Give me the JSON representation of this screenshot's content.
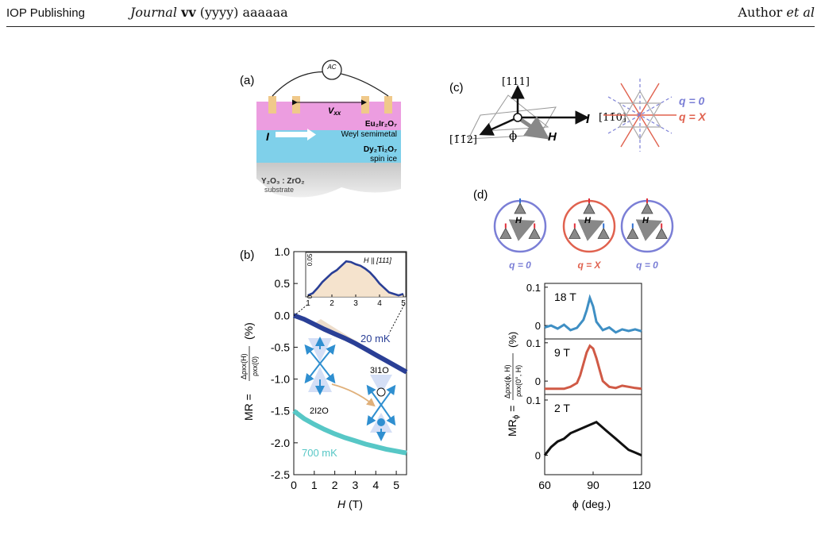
{
  "header": {
    "publisher": "IOP Publishing",
    "journal_italic": "Journal",
    "journal_vol": "vv",
    "journal_rest": "(yyyy) aaaaaa",
    "author": "Author",
    "etal": "et al"
  },
  "panel_a": {
    "label": "(a)",
    "ac": "AC",
    "vxx": "V",
    "vxx_sub": "xx",
    "current": "I",
    "layer1_name": "Eu₂Ir₂O₇",
    "layer1_desc": "Weyl semimetal",
    "layer2_name": "Dy₂Ti₂O₇",
    "layer2_desc": "spin ice",
    "substrate_name": "Y₂O₃ : ZrO₂",
    "substrate_desc": "substrate"
  },
  "panel_b": {
    "label": "(b)",
    "ylabel_main": "MR =",
    "ylabel_unit": "(%)",
    "ylabel_num": "Δρxx(H)",
    "ylabel_den": "ρxx(0)",
    "xlabel": "H",
    "xunit": "(T)",
    "curve_20": "20 mK",
    "curve_700": "700 mK",
    "inset_label": "H || [111]",
    "state_2i2o": "2I2O",
    "state_3i1o": "3I1O"
  },
  "panel_c": {
    "label": "(c)",
    "dir111": "[111]",
    "dir112": "[1̄1̄2]",
    "dir110": "[11̄0]",
    "phi": "ϕ",
    "H": "H",
    "I": "I",
    "q0": "q = 0",
    "qX": "q = X"
  },
  "panel_d": {
    "label": "(d)",
    "circles": [
      "q = 0",
      "q = X",
      "q = 0"
    ],
    "ylabel_main": "MR",
    "ylabel_sub": "ϕ",
    "ylabel_num": "Δρxx(ϕ, H)",
    "ylabel_den": "ρxx(0°, H)",
    "ylabel_unit": "(%)",
    "xlabel": "ϕ (deg.)",
    "panels": [
      "18 T",
      "9 T",
      "2 T"
    ]
  },
  "chart_data": [
    {
      "type": "line",
      "title": "",
      "xlabel": "H (T)",
      "ylabel": "MR = Δρxx(H)/ρxx(0) (%)",
      "xlim": [
        0,
        5.5
      ],
      "ylim": [
        -2.5,
        1.0
      ],
      "x_ticks": [
        "0",
        "1",
        "2",
        "3",
        "4",
        "5"
      ],
      "y_ticks": [
        "1.0",
        "0.5",
        "0.0",
        "-0.5",
        "-1.0",
        "-1.5",
        "-2.0",
        "-2.5"
      ],
      "series": [
        {
          "name": "20 mK",
          "color": "#2a3f96",
          "x": [
            0,
            0.5,
            1,
            1.5,
            2,
            2.5,
            3,
            3.5,
            4,
            4.5,
            5,
            5.5
          ],
          "values": [
            0.0,
            -0.06,
            -0.14,
            -0.22,
            -0.29,
            -0.36,
            -0.44,
            -0.53,
            -0.62,
            -0.71,
            -0.8,
            -0.89
          ]
        },
        {
          "name": "700 mK",
          "color": "#57c7c6",
          "x": [
            0,
            0.5,
            1,
            1.5,
            2,
            2.5,
            3,
            3.5,
            4,
            4.5,
            5,
            5.5
          ],
          "values": [
            -1.5,
            -1.62,
            -1.71,
            -1.79,
            -1.86,
            -1.92,
            -1.97,
            -2.02,
            -2.06,
            -2.1,
            -2.13,
            -2.16
          ]
        }
      ]
    },
    {
      "type": "line",
      "title": "H || [111]",
      "xlim": [
        0.9,
        5.1
      ],
      "ylim": [
        0,
        0.06
      ],
      "x_ticks": [
        "1",
        "2",
        "3",
        "4",
        "5"
      ],
      "y_ticks": [
        "0",
        "0.05"
      ],
      "series": [
        {
          "name": "",
          "color": "#2a3f96",
          "x": [
            1.0,
            1.2,
            1.4,
            1.6,
            1.8,
            2.0,
            2.2,
            2.4,
            2.6,
            2.8,
            3.0,
            3.2,
            3.4,
            3.6,
            3.8,
            4.0,
            4.2,
            4.4,
            4.6,
            4.8,
            5.0
          ],
          "values": [
            0.002,
            0.005,
            0.012,
            0.02,
            0.026,
            0.032,
            0.036,
            0.042,
            0.048,
            0.047,
            0.044,
            0.042,
            0.038,
            0.033,
            0.026,
            0.018,
            0.012,
            0.006,
            0.004,
            0.002,
            0.004
          ]
        }
      ]
    },
    {
      "type": "line",
      "title": "",
      "xlabel": "ϕ (deg.)",
      "ylabel": "MRϕ = Δρxx(ϕ, H)/ρxx(0°, H) (%)",
      "xlim": [
        60,
        120
      ],
      "x_ticks": [
        "60",
        "90",
        "120"
      ],
      "series": [
        {
          "name": "18 T",
          "color": "#3f8fc4",
          "ylim": [
            -0.035,
            0.11
          ],
          "y_ticks": [
            "0.1",
            "0"
          ],
          "x": [
            60,
            64,
            68,
            72,
            76,
            80,
            84,
            86,
            88,
            90,
            92,
            96,
            100,
            104,
            108,
            112,
            116,
            120
          ],
          "values": [
            -0.005,
            0.0,
            -0.008,
            0.002,
            -0.012,
            -0.006,
            0.015,
            0.04,
            0.072,
            0.05,
            0.01,
            -0.012,
            -0.005,
            -0.018,
            -0.01,
            -0.014,
            -0.01,
            -0.015
          ]
        },
        {
          "name": "9 T",
          "color": "#d05a46",
          "ylim": [
            -0.035,
            0.11
          ],
          "y_ticks": [
            "0.1",
            "0"
          ],
          "x": [
            60,
            64,
            68,
            72,
            76,
            80,
            82,
            84,
            86,
            88,
            90,
            92,
            94,
            96,
            100,
            104,
            108,
            112,
            116,
            120
          ],
          "values": [
            -0.02,
            -0.02,
            -0.02,
            -0.02,
            -0.015,
            -0.005,
            0.015,
            0.045,
            0.075,
            0.092,
            0.085,
            0.06,
            0.03,
            0.0,
            -0.015,
            -0.018,
            -0.012,
            -0.015,
            -0.018,
            -0.02
          ]
        },
        {
          "name": "2 T",
          "color": "#111111",
          "ylim": [
            -0.035,
            0.11
          ],
          "y_ticks": [
            "0.1",
            "0"
          ],
          "x": [
            60,
            64,
            68,
            72,
            76,
            80,
            84,
            88,
            92,
            96,
            100,
            104,
            108,
            112,
            116,
            120
          ],
          "values": [
            0.0,
            0.015,
            0.025,
            0.03,
            0.04,
            0.045,
            0.05,
            0.055,
            0.06,
            0.05,
            0.04,
            0.03,
            0.02,
            0.01,
            0.005,
            0.0
          ]
        }
      ]
    }
  ]
}
